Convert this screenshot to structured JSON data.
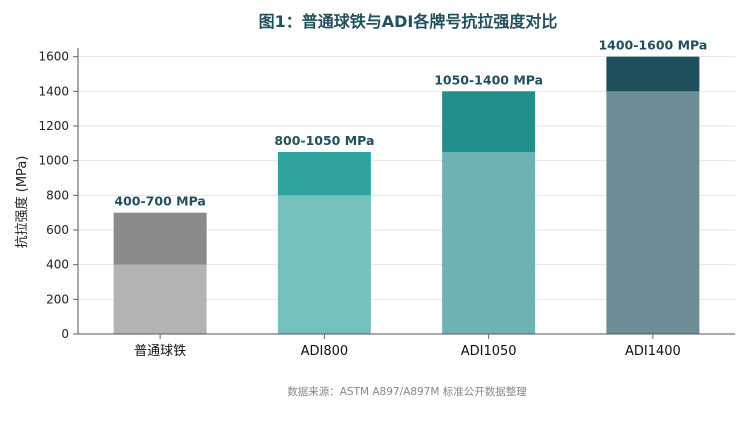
{
  "chart_data": {
    "type": "bar",
    "subtype": "stacked-range",
    "title": "图1：普通球铁与ADI各牌号抗拉强度对比",
    "ylabel": "抗拉强度 (MPa)",
    "xlabel": "",
    "ylim": [
      0,
      1650
    ],
    "yticks": [
      0,
      200,
      400,
      600,
      800,
      1000,
      1200,
      1400,
      1600
    ],
    "grid": true,
    "categories": [
      "普通球铁",
      "ADI800",
      "ADI1050",
      "ADI1400"
    ],
    "series": [
      {
        "values": [
          400,
          800,
          1050,
          1400
        ]
      },
      {
        "values": [
          300,
          250,
          350,
          200
        ]
      }
    ],
    "range_labels": [
      "400-700 MPa",
      "800-1050 MPa",
      "1050-1400 MPa",
      "1400-1600 MPa"
    ],
    "colors": {
      "base": [
        "#b3b3b3",
        "#74c0bd",
        "#6db3b3",
        "#6c8c96"
      ],
      "top": [
        "#8a8a8a",
        "#2ea3a0",
        "#238f8d",
        "#1f4f5d"
      ]
    },
    "source": "数据来源：ASTM A897/A897M 标准公开数据整理"
  }
}
